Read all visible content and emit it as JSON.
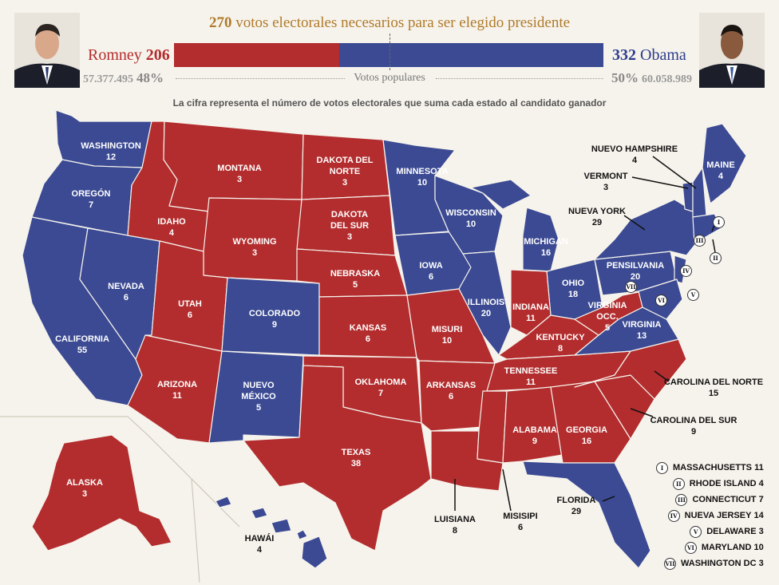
{
  "header": {
    "electoral_needed_num": "270",
    "electoral_needed_text": "votos electorales necesarios para ser elegido presidente",
    "popular_label": "Votos populares",
    "subtitle": "La cifra representa el número de votos electorales que suma cada estado al candidato ganador"
  },
  "romney": {
    "name": "Romney",
    "electoral": "206",
    "popular_votes": "57.377.495",
    "popular_pct": "48%",
    "color": "#b32d2e"
  },
  "obama": {
    "name": "Obama",
    "electoral": "332",
    "popular_votes": "60.058.989",
    "popular_pct": "50%",
    "color": "#3b4a93"
  },
  "states": [
    {
      "name": "WASHINGTON",
      "votes": "12",
      "winner": "obama"
    },
    {
      "name": "OREGÓN",
      "votes": "7",
      "winner": "obama"
    },
    {
      "name": "CALIFORNIA",
      "votes": "55",
      "winner": "obama"
    },
    {
      "name": "NEVADA",
      "votes": "6",
      "winner": "obama"
    },
    {
      "name": "IDAHO",
      "votes": "4",
      "winner": "romney"
    },
    {
      "name": "MONTANA",
      "votes": "3",
      "winner": "romney"
    },
    {
      "name": "WYOMING",
      "votes": "3",
      "winner": "romney"
    },
    {
      "name": "UTAH",
      "votes": "6",
      "winner": "romney"
    },
    {
      "name": "ARIZONA",
      "votes": "11",
      "winner": "romney"
    },
    {
      "name": "COLORADO",
      "votes": "9",
      "winner": "obama"
    },
    {
      "name": "NUEVO MÉXICO",
      "votes": "5",
      "winner": "obama"
    },
    {
      "name": "DAKOTA DEL NORTE",
      "votes": "3",
      "winner": "romney"
    },
    {
      "name": "DAKOTA DEL SUR",
      "votes": "3",
      "winner": "romney"
    },
    {
      "name": "NEBRASKA",
      "votes": "5",
      "winner": "romney"
    },
    {
      "name": "KANSAS",
      "votes": "6",
      "winner": "romney"
    },
    {
      "name": "OKLAHOMA",
      "votes": "7",
      "winner": "romney"
    },
    {
      "name": "TEXAS",
      "votes": "38",
      "winner": "romney"
    },
    {
      "name": "MINNESOTA",
      "votes": "10",
      "winner": "obama"
    },
    {
      "name": "IOWA",
      "votes": "6",
      "winner": "obama"
    },
    {
      "name": "MISURI",
      "votes": "10",
      "winner": "romney"
    },
    {
      "name": "ARKANSAS",
      "votes": "6",
      "winner": "romney"
    },
    {
      "name": "LUISIANA",
      "votes": "8",
      "winner": "romney"
    },
    {
      "name": "WISCONSIN",
      "votes": "10",
      "winner": "obama"
    },
    {
      "name": "ILLINOIS",
      "votes": "20",
      "winner": "obama"
    },
    {
      "name": "MICHIGAN",
      "votes": "16",
      "winner": "obama"
    },
    {
      "name": "INDIANA",
      "votes": "11",
      "winner": "romney"
    },
    {
      "name": "OHIO",
      "votes": "18",
      "winner": "obama"
    },
    {
      "name": "KENTUCKY",
      "votes": "8",
      "winner": "romney"
    },
    {
      "name": "TENNESSEE",
      "votes": "11",
      "winner": "romney"
    },
    {
      "name": "MISISIPI",
      "votes": "6",
      "winner": "romney"
    },
    {
      "name": "ALABAMA",
      "votes": "9",
      "winner": "romney"
    },
    {
      "name": "GEORGIA",
      "votes": "16",
      "winner": "romney"
    },
    {
      "name": "FLORIDA",
      "votes": "29",
      "winner": "obama"
    },
    {
      "name": "CAROLINA DEL SUR",
      "votes": "9",
      "winner": "romney"
    },
    {
      "name": "CAROLINA DEL NORTE",
      "votes": "15",
      "winner": "romney"
    },
    {
      "name": "VIRGINIA",
      "votes": "13",
      "winner": "obama"
    },
    {
      "name": "VIRGINIA OCC.",
      "votes": "5",
      "winner": "romney"
    },
    {
      "name": "PENSILVANIA",
      "votes": "20",
      "winner": "obama"
    },
    {
      "name": "NUEVA YORK",
      "votes": "29",
      "winner": "obama"
    },
    {
      "name": "VERMONT",
      "votes": "3",
      "winner": "obama"
    },
    {
      "name": "NUEVO HAMPSHIRE",
      "votes": "4",
      "winner": "obama"
    },
    {
      "name": "MAINE",
      "votes": "4",
      "winner": "obama"
    },
    {
      "name": "ALASKA",
      "votes": "3",
      "winner": "romney"
    },
    {
      "name": "HAWÁI",
      "votes": "4",
      "winner": "obama"
    }
  ],
  "legend": [
    {
      "numeral": "I",
      "name": "MASSACHUSETTS",
      "votes": "11"
    },
    {
      "numeral": "II",
      "name": "RHODE ISLAND",
      "votes": "4"
    },
    {
      "numeral": "III",
      "name": "CONNECTICUT",
      "votes": "7"
    },
    {
      "numeral": "IV",
      "name": "NUEVA JERSEY",
      "votes": "14"
    },
    {
      "numeral": "V",
      "name": "DELAWARE",
      "votes": "3"
    },
    {
      "numeral": "VI",
      "name": "MARYLAND",
      "votes": "10"
    },
    {
      "numeral": "VII",
      "name": "WASHINGTON DC",
      "votes": "3"
    }
  ]
}
